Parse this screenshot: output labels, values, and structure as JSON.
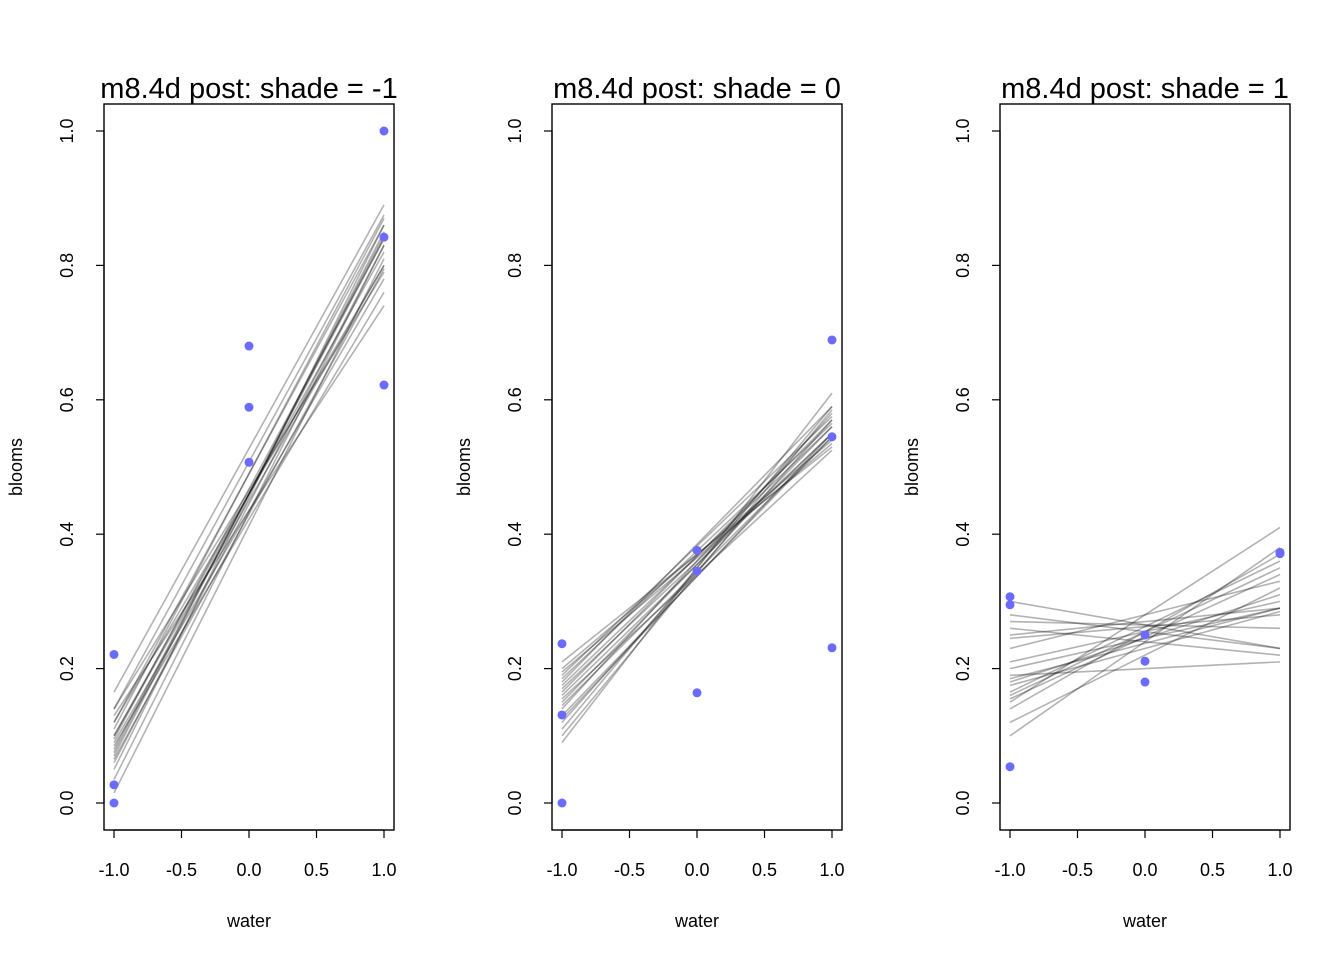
{
  "chart_data": [
    {
      "type": "scatter",
      "title": "m8.4d post: shade = -1",
      "xlabel": "water",
      "ylabel": "blooms",
      "xlim": [
        -1,
        1
      ],
      "ylim": [
        0,
        1
      ],
      "xticks": [
        "-1.0",
        "-0.5",
        "0.0",
        "0.5",
        "1.0"
      ],
      "yticks": [
        "0.0",
        "0.2",
        "0.4",
        "0.6",
        "0.8",
        "1.0"
      ],
      "points": [
        [
          -1,
          0.221
        ],
        [
          -1,
          0.027
        ],
        [
          -1,
          0.0
        ],
        [
          0,
          0.68
        ],
        [
          0,
          0.589
        ],
        [
          0,
          0.507
        ],
        [
          1,
          1.0
        ],
        [
          1,
          0.842
        ],
        [
          1,
          0.622
        ]
      ],
      "posterior_lines": [
        [
          0.08,
          0.84
        ],
        [
          0.1,
          0.82
        ],
        [
          0.12,
          0.8
        ],
        [
          0.07,
          0.85
        ],
        [
          0.14,
          0.79
        ],
        [
          0.165,
          0.89
        ],
        [
          0.05,
          0.86
        ],
        [
          0.09,
          0.78
        ],
        [
          0.11,
          0.87
        ],
        [
          0.13,
          0.74
        ],
        [
          0.06,
          0.83
        ],
        [
          0.015,
          0.81
        ],
        [
          0.085,
          0.76
        ],
        [
          0.075,
          0.845
        ],
        [
          0.12,
          0.86
        ],
        [
          0.1,
          0.8
        ],
        [
          0.035,
          0.83
        ],
        [
          0.14,
          0.875
        ],
        [
          0.095,
          0.84
        ],
        [
          0.065,
          0.795
        ]
      ]
    },
    {
      "type": "scatter",
      "title": "m8.4d post: shade = 0",
      "xlabel": "water",
      "ylabel": "blooms",
      "xlim": [
        -1,
        1
      ],
      "ylim": [
        0,
        1
      ],
      "xticks": [
        "-1.0",
        "-0.5",
        "0.0",
        "0.5",
        "1.0"
      ],
      "yticks": [
        "0.0",
        "0.2",
        "0.4",
        "0.6",
        "0.8",
        "1.0"
      ],
      "points": [
        [
          -1,
          0.237
        ],
        [
          -1,
          0.131
        ],
        [
          -1,
          0.0
        ],
        [
          0,
          0.376
        ],
        [
          0,
          0.345
        ],
        [
          0,
          0.164
        ],
        [
          1,
          0.689
        ],
        [
          1,
          0.545
        ],
        [
          1,
          0.231
        ]
      ],
      "posterior_lines": [
        [
          0.16,
          0.55
        ],
        [
          0.18,
          0.59
        ],
        [
          0.12,
          0.57
        ],
        [
          0.2,
          0.54
        ],
        [
          0.14,
          0.58
        ],
        [
          0.09,
          0.61
        ],
        [
          0.21,
          0.53
        ],
        [
          0.15,
          0.56
        ],
        [
          0.17,
          0.55
        ],
        [
          0.1,
          0.585
        ],
        [
          0.13,
          0.545
        ],
        [
          0.19,
          0.575
        ],
        [
          0.155,
          0.525
        ],
        [
          0.11,
          0.59
        ],
        [
          0.175,
          0.56
        ],
        [
          0.145,
          0.545
        ],
        [
          0.165,
          0.57
        ],
        [
          0.125,
          0.55
        ],
        [
          0.195,
          0.535
        ],
        [
          0.185,
          0.565
        ]
      ]
    },
    {
      "type": "scatter",
      "title": "m8.4d post: shade = 1",
      "xlabel": "water",
      "ylabel": "blooms",
      "xlim": [
        -1,
        1
      ],
      "ylim": [
        0,
        1
      ],
      "xticks": [
        "-1.0",
        "-0.5",
        "0.0",
        "0.5",
        "1.0"
      ],
      "yticks": [
        "0.0",
        "0.2",
        "0.4",
        "0.6",
        "0.8",
        "1.0"
      ],
      "points": [
        [
          -1,
          0.307
        ],
        [
          -1,
          0.295
        ],
        [
          -1,
          0.054
        ],
        [
          0,
          0.25
        ],
        [
          0,
          0.211
        ],
        [
          0,
          0.18
        ],
        [
          1,
          0.373
        ],
        [
          1,
          0.371
        ]
      ],
      "posterior_lines": [
        [
          0.3,
          0.23
        ],
        [
          0.26,
          0.22
        ],
        [
          0.2,
          0.29
        ],
        [
          0.15,
          0.41
        ],
        [
          0.18,
          0.31
        ],
        [
          0.1,
          0.38
        ],
        [
          0.25,
          0.29
        ],
        [
          0.27,
          0.26
        ],
        [
          0.16,
          0.35
        ],
        [
          0.19,
          0.21
        ],
        [
          0.23,
          0.33
        ],
        [
          0.14,
          0.37
        ],
        [
          0.175,
          0.285
        ],
        [
          0.21,
          0.3
        ],
        [
          0.12,
          0.32
        ],
        [
          0.28,
          0.23
        ],
        [
          0.165,
          0.36
        ],
        [
          0.245,
          0.28
        ],
        [
          0.155,
          0.34
        ],
        [
          0.185,
          0.29
        ]
      ]
    }
  ],
  "colors": {
    "points": "#6b6bff",
    "lines": "rgba(0,0,0,0.3)",
    "axes": "#000000"
  }
}
